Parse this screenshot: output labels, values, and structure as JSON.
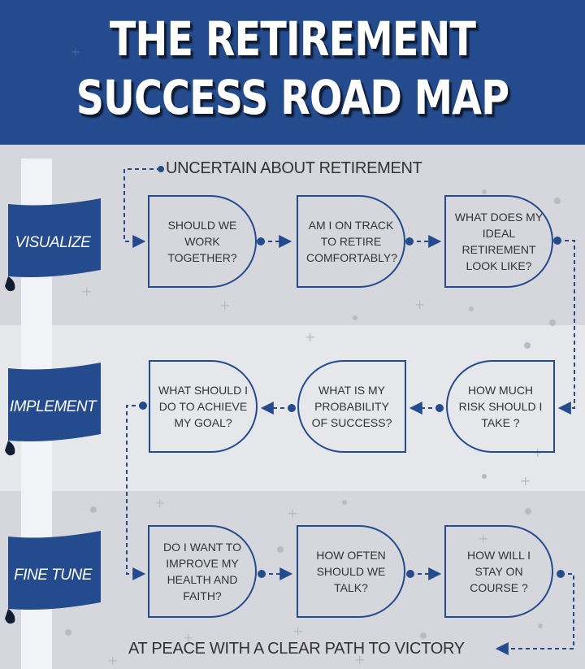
{
  "title": {
    "line1": "THE RETIREMENT",
    "line2": "SUCCESS ROAD MAP"
  },
  "start_text": "UNCERTAIN ABOUT RETIREMENT",
  "end_text": "AT PEACE WITH A CLEAR PATH TO VICTORY",
  "stages": [
    {
      "label": "VISUALIZE",
      "steps": [
        "SHOULD WE WORK TOGETHER?",
        "AM I ON TRACK TO RETIRE COMFORTABLY?",
        "WHAT DOES MY IDEAL RETIREMENT LOOK LIKE?"
      ]
    },
    {
      "label": "IMPLEMENT",
      "steps": [
        "WHAT SHOULD I DO TO ACHIEVE MY GOAL?",
        "WHAT IS MY PROBABILITY OF SUCCESS?",
        "HOW MUCH RISK SHOULD I TAKE ?"
      ]
    },
    {
      "label": "FINE TUNE",
      "steps": [
        "DO I WANT TO IMPROVE MY HEALTH AND FAITH?",
        "HOW OFTEN SHOULD WE TALK?",
        "HOW WILL I STAY ON COURSE ?"
      ]
    }
  ],
  "colors": {
    "navy": "#244b8d",
    "dark": "#101c33",
    "text": "#333333",
    "band_dark": "#d6d7dc",
    "band_light": "#e6e7eb"
  }
}
